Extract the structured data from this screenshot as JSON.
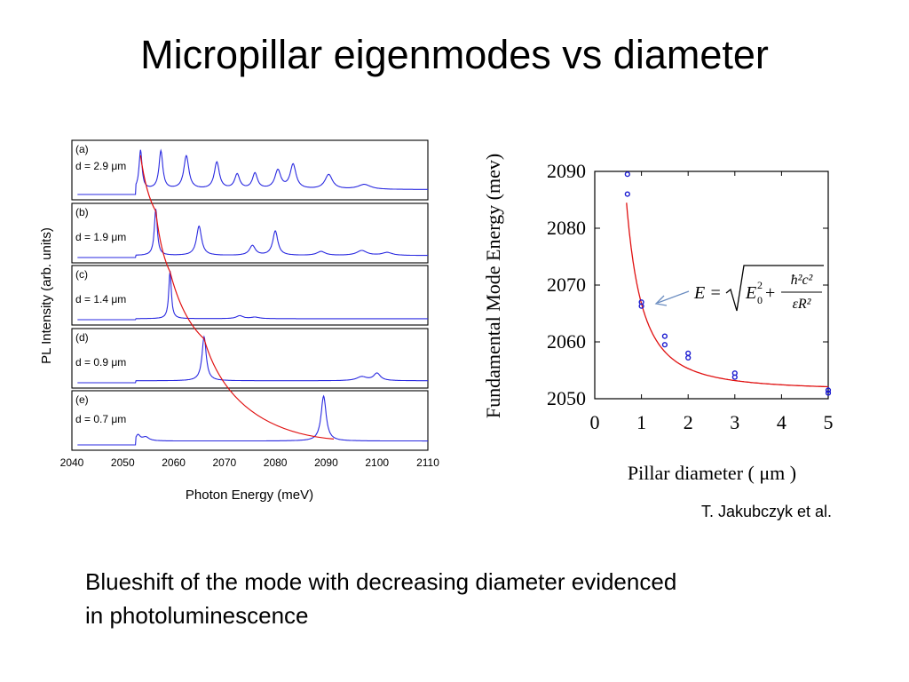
{
  "slide": {
    "title": "Micropillar eigenmodes vs diameter",
    "credit": "T. Jakubczyk et al.",
    "caption_lines": [
      "Blueshift of the mode with decreasing diameter evidenced",
      "in photoluminescence"
    ]
  },
  "colors": {
    "spectrum": "#2a2ae0",
    "fit": "#e01010",
    "points": "#1a1ad0",
    "arrow": "#6a8cc0"
  },
  "chart_data": [
    {
      "type": "line",
      "xlabel": "Photon Energy (meV)",
      "ylabel": "PL Intensity (arb. units)",
      "xlim": [
        2040,
        2110
      ],
      "x_ticks": [
        "2040",
        "2050",
        "2060",
        "2070",
        "2080",
        "2090",
        "2100",
        "2110"
      ],
      "panels": [
        {
          "label": "(a)",
          "diameter_label": "d = 2.9 μm",
          "baseline": 0.1,
          "peaks": [
            [
              2053.5,
              0.8,
              0.35
            ],
            [
              2057.5,
              0.78,
              0.45
            ],
            [
              2062.5,
              0.68,
              0.6
            ],
            [
              2068.5,
              0.55,
              0.6
            ],
            [
              2072.5,
              0.3,
              0.6
            ],
            [
              2076,
              0.32,
              0.6
            ],
            [
              2080.5,
              0.38,
              0.7
            ],
            [
              2083.5,
              0.5,
              0.7
            ],
            [
              2090.5,
              0.3,
              0.9
            ],
            [
              2097.5,
              0.1,
              1.5
            ]
          ]
        },
        {
          "label": "(b)",
          "diameter_label": "d = 1.9 μm",
          "baseline": 0.04,
          "peaks": [
            [
              2056.5,
              0.95,
              0.35
            ],
            [
              2065,
              0.6,
              0.6
            ],
            [
              2075.5,
              0.2,
              0.7
            ],
            [
              2080,
              0.5,
              0.6
            ],
            [
              2089,
              0.08,
              1.0
            ],
            [
              2097,
              0.1,
              1.2
            ],
            [
              2102,
              0.06,
              1.2
            ]
          ]
        },
        {
          "label": "(c)",
          "diameter_label": "d = 1.4 μm",
          "baseline": 0.02,
          "peaks": [
            [
              2059.3,
              0.98,
              0.3
            ],
            [
              2073,
              0.06,
              0.8
            ],
            [
              2076,
              0.03,
              1.0
            ]
          ]
        },
        {
          "label": "(d)",
          "diameter_label": "d = 0.9 μm",
          "baseline": 0.04,
          "peaks": [
            [
              2066,
              0.9,
              0.5
            ],
            [
              2097,
              0.08,
              1.2
            ],
            [
              2100,
              0.15,
              0.8
            ]
          ]
        },
        {
          "label": "(e)",
          "diameter_label": "d = 0.7 μm",
          "baseline": 0.08,
          "peaks": [
            [
              2053,
              0.12,
              0.5
            ],
            [
              2054.5,
              0.08,
              0.8
            ],
            [
              2089.5,
              0.92,
              0.6
            ]
          ]
        }
      ],
      "mode_trace": [
        [
          2053.5,
          0.8
        ],
        [
          2056.5,
          0.95
        ],
        [
          2059.3,
          0.98
        ],
        [
          2066,
          0.9
        ],
        [
          2091.5,
          0.12
        ]
      ]
    },
    {
      "type": "scatter",
      "xlabel": "Pillar diameter ( μm )",
      "ylabel": "Fundamental Mode Energy (mev)",
      "xlim": [
        0,
        5
      ],
      "ylim": [
        2050,
        2090
      ],
      "x_ticks": [
        "0",
        "1",
        "2",
        "3",
        "4",
        "5"
      ],
      "y_ticks": [
        "2050",
        "2060",
        "2070",
        "2080",
        "2090"
      ],
      "points": [
        [
          0.7,
          2089.5
        ],
        [
          0.7,
          2086
        ],
        [
          1.0,
          2067
        ],
        [
          1.0,
          2066.3
        ],
        [
          1.5,
          2061
        ],
        [
          1.5,
          2059.5
        ],
        [
          2.0,
          2058
        ],
        [
          2.0,
          2057.2
        ],
        [
          3.0,
          2054.5
        ],
        [
          3.0,
          2053.8
        ],
        [
          5.0,
          2051.5
        ],
        [
          5.0,
          2051
        ]
      ],
      "fit": {
        "E0": 2051.5,
        "A": 30.5
      },
      "equation": {
        "lhs": "E =",
        "term1": "E",
        "term1_sub": "0",
        "term1_sup": "2",
        "plus": "+",
        "numerator": "ħ²c²",
        "denominator": "εR²"
      }
    }
  ]
}
